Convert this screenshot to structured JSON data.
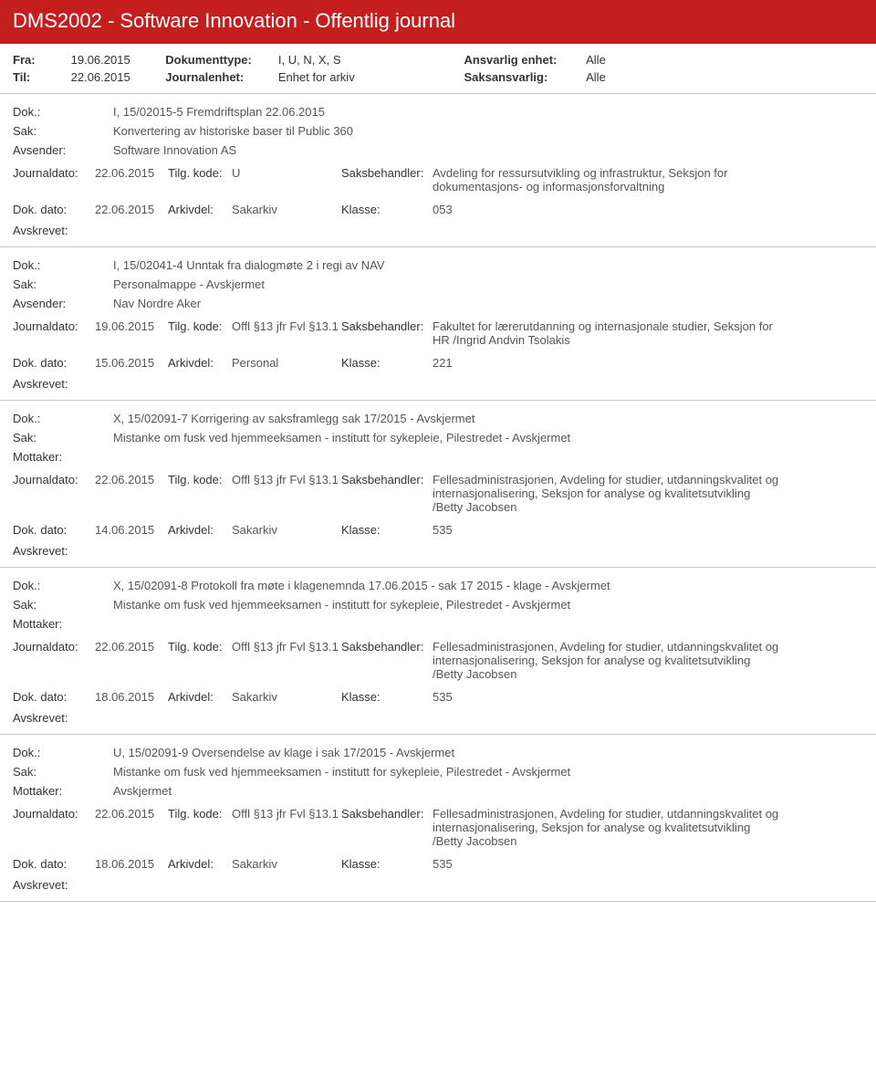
{
  "header": {
    "title": "DMS2002 - Software Innovation - Offentlig journal"
  },
  "meta": {
    "fra_label": "Fra:",
    "fra_val": "19.06.2015",
    "til_label": "Til:",
    "til_val": "22.06.2015",
    "doktype_label": "Dokumenttype:",
    "doktype_val": "I, U, N, X, S",
    "journalenhet_label": "Journalenhet:",
    "journalenhet_val": "Enhet for arkiv",
    "ansvarlig_label": "Ansvarlig enhet:",
    "ansvarlig_val": "Alle",
    "saksansvarlig_label": "Saksansvarlig:",
    "saksansvarlig_val": "Alle"
  },
  "labels": {
    "dok": "Dok.:",
    "sak": "Sak:",
    "avsender": "Avsender:",
    "mottaker": "Mottaker:",
    "journaldato": "Journaldato:",
    "tilgkode": "Tilg. kode:",
    "saksbehandler": "Saksbehandler:",
    "dokdato": "Dok. dato:",
    "arkivdel": "Arkivdel:",
    "klasse": "Klasse:",
    "avskrevet": "Avskrevet:"
  },
  "entries": [
    {
      "dok": "I, 15/02015-5 Fremdriftsplan 22.06.2015",
      "sak": "Konvertering av historiske baser til Public 360",
      "party_label": "Avsender:",
      "party_val": "Software Innovation AS",
      "journaldato": "22.06.2015",
      "tilgkode": "U",
      "saksbehandler": "Avdeling for ressursutvikling og infrastruktur, Seksjon for dokumentasjons- og informasjonsforvaltning",
      "dokdato": "22.06.2015",
      "arkivdel": "Sakarkiv",
      "klasse": "053"
    },
    {
      "dok": "I, 15/02041-4 Unntak fra dialogmøte 2 i regi av NAV",
      "sak": "Personalmappe - Avskjermet",
      "party_label": "Avsender:",
      "party_val": "Nav Nordre Aker",
      "journaldato": "19.06.2015",
      "tilgkode": "Offl §13 jfr Fvl §13.1",
      "saksbehandler": "Fakultet for lærerutdanning og internasjonale studier, Seksjon for HR /Ingrid Andvin Tsolakis",
      "dokdato": "15.06.2015",
      "arkivdel": "Personal",
      "klasse": "221"
    },
    {
      "dok": "X, 15/02091-7 Korrigering av saksframlegg sak 17/2015 - Avskjermet",
      "sak": "Mistanke om fusk ved hjemmeeksamen - institutt for sykepleie, Pilestredet - Avskjermet",
      "party_label": "Mottaker:",
      "party_val": "",
      "journaldato": "22.06.2015",
      "tilgkode": "Offl §13 jfr Fvl §13.1",
      "saksbehandler": "Fellesadministrasjonen, Avdeling for studier, utdanningskvalitet og internasjonalisering, Seksjon for analyse og kvalitetsutvikling /Betty Jacobsen",
      "dokdato": "14.06.2015",
      "arkivdel": "Sakarkiv",
      "klasse": "535"
    },
    {
      "dok": "X, 15/02091-8 Protokoll fra møte i klagenemnda 17.06.2015 - sak 17 2015 - klage - Avskjermet",
      "sak": "Mistanke om fusk ved hjemmeeksamen - institutt for sykepleie, Pilestredet - Avskjermet",
      "party_label": "Mottaker:",
      "party_val": "",
      "journaldato": "22.06.2015",
      "tilgkode": "Offl §13 jfr Fvl §13.1",
      "saksbehandler": "Fellesadministrasjonen, Avdeling for studier, utdanningskvalitet og internasjonalisering, Seksjon for analyse og kvalitetsutvikling /Betty Jacobsen",
      "dokdato": "18.06.2015",
      "arkivdel": "Sakarkiv",
      "klasse": "535"
    },
    {
      "dok": "U, 15/02091-9 Oversendelse av klage i sak 17/2015 - Avskjermet",
      "sak": "Mistanke om fusk ved hjemmeeksamen - institutt for sykepleie, Pilestredet - Avskjermet",
      "party_label": "Mottaker:",
      "party_val": "Avskjermet",
      "journaldato": "22.06.2015",
      "tilgkode": "Offl §13 jfr Fvl §13.1",
      "saksbehandler": "Fellesadministrasjonen, Avdeling for studier, utdanningskvalitet og internasjonalisering, Seksjon for analyse og kvalitetsutvikling /Betty Jacobsen",
      "dokdato": "18.06.2015",
      "arkivdel": "Sakarkiv",
      "klasse": "535"
    }
  ]
}
